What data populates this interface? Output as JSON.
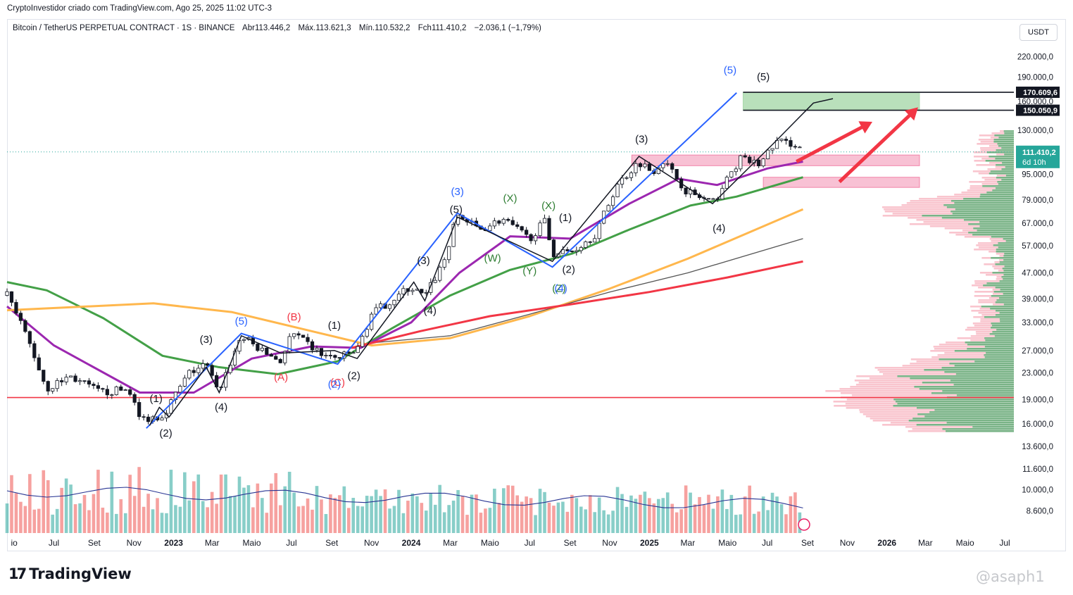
{
  "header": "CryptoInvestidor criado com TradingView.com, Ago 25, 2025 11:02 UTC-3",
  "symbol": {
    "name": "Bitcoin / TetherUS PERPETUAL CONTRACT · 1S · BINANCE",
    "open": "Abr113.446,2",
    "high": "Máx.113.621,3",
    "low": "Mín.110.532,2",
    "close": "Fch111.410,2",
    "change": "−2.036,1 (−1,79%)"
  },
  "currency": "USDT",
  "brand": "TradingView",
  "watermark": "@asaph1",
  "colors": {
    "up": "#26a69a",
    "down": "#ef5350",
    "sma_green": "#43a047",
    "sma_purple": "#9c27b0",
    "sma_orange": "#ffb74d",
    "sma_red": "#f23645",
    "wave_blue": "#2962ff",
    "target_green": "#81c784"
  },
  "chart_data": {
    "type": "candlestick",
    "scale": "log",
    "ylim": [
      7600,
      250000
    ],
    "x_range": [
      "2022-04-20",
      "2026-07-15"
    ],
    "price_ticks": [
      "220.000,0",
      "190.000,0",
      "160.000,0",
      "130.000,0",
      "95.000,0",
      "79.000,0",
      "67.000,0",
      "57.000,0",
      "47.000,0",
      "39.000,0",
      "33.000,0",
      "27.000,0",
      "23.000,0",
      "19.000,0",
      "16.000,0",
      "13.600,0",
      "11.600,0",
      "10.000,0",
      "8.600,0"
    ],
    "price_tick_values": [
      220000,
      190000,
      160000,
      130000,
      95000,
      79000,
      67000,
      57000,
      47000,
      39000,
      33000,
      27000,
      23000,
      19000,
      16000,
      13600,
      11600,
      10000,
      8600
    ],
    "time_ticks": [
      {
        "label": "io",
        "date": "2022-05-01",
        "bold": false
      },
      {
        "label": "Jul",
        "date": "2022-07-01",
        "bold": false
      },
      {
        "label": "Set",
        "date": "2022-09-01",
        "bold": false
      },
      {
        "label": "Nov",
        "date": "2022-11-01",
        "bold": false
      },
      {
        "label": "2023",
        "date": "2023-01-01",
        "bold": true
      },
      {
        "label": "Mar",
        "date": "2023-03-01",
        "bold": false
      },
      {
        "label": "Maio",
        "date": "2023-05-01",
        "bold": false
      },
      {
        "label": "Jul",
        "date": "2023-07-01",
        "bold": false
      },
      {
        "label": "Set",
        "date": "2023-09-01",
        "bold": false
      },
      {
        "label": "Nov",
        "date": "2023-11-01",
        "bold": false
      },
      {
        "label": "2024",
        "date": "2024-01-01",
        "bold": true
      },
      {
        "label": "Mar",
        "date": "2024-03-01",
        "bold": false
      },
      {
        "label": "Maio",
        "date": "2024-05-01",
        "bold": false
      },
      {
        "label": "Jul",
        "date": "2024-07-01",
        "bold": false
      },
      {
        "label": "Set",
        "date": "2024-09-01",
        "bold": false
      },
      {
        "label": "Nov",
        "date": "2024-11-01",
        "bold": false
      },
      {
        "label": "2025",
        "date": "2025-01-01",
        "bold": true
      },
      {
        "label": "Mar",
        "date": "2025-03-01",
        "bold": false
      },
      {
        "label": "Maio",
        "date": "2025-05-01",
        "bold": false
      },
      {
        "label": "Jul",
        "date": "2025-07-01",
        "bold": false
      },
      {
        "label": "Set",
        "date": "2025-09-01",
        "bold": false
      },
      {
        "label": "Nov",
        "date": "2025-11-01",
        "bold": false
      },
      {
        "label": "2026",
        "date": "2026-01-01",
        "bold": true
      },
      {
        "label": "Mar",
        "date": "2026-03-01",
        "bold": false
      },
      {
        "label": "Maio",
        "date": "2026-05-01",
        "bold": false
      },
      {
        "label": "Jul",
        "date": "2026-07-01",
        "bold": false
      }
    ],
    "price_path": [
      [
        "2022-04-20",
        40000
      ],
      [
        "2022-05-20",
        30000
      ],
      [
        "2022-06-20",
        20500
      ],
      [
        "2022-07-25",
        22500
      ],
      [
        "2022-09-10",
        20000
      ],
      [
        "2022-10-25",
        20500
      ],
      [
        "2022-11-10",
        16500
      ],
      [
        "2022-12-15",
        17000
      ],
      [
        "2023-01-25",
        23000
      ],
      [
        "2023-02-20",
        24500
      ],
      [
        "2023-03-10",
        20000
      ],
      [
        "2023-04-15",
        30000
      ],
      [
        "2023-05-15",
        27000
      ],
      [
        "2023-06-15",
        25000
      ],
      [
        "2023-07-01",
        30500
      ],
      [
        "2023-08-20",
        26000
      ],
      [
        "2023-09-10",
        25500
      ],
      [
        "2023-10-10",
        27000
      ],
      [
        "2023-11-01",
        35000
      ],
      [
        "2023-12-31",
        42500
      ],
      [
        "2024-01-22",
        39500
      ],
      [
        "2024-02-20",
        51000
      ],
      [
        "2024-03-12",
        71000
      ],
      [
        "2024-04-15",
        64000
      ],
      [
        "2024-05-20",
        69000
      ],
      [
        "2024-06-30",
        60000
      ],
      [
        "2024-07-25",
        68000
      ],
      [
        "2024-08-05",
        54000
      ],
      [
        "2024-09-05",
        55000
      ],
      [
        "2024-10-10",
        62000
      ],
      [
        "2024-11-12",
        88000
      ],
      [
        "2024-12-16",
        104000
      ],
      [
        "2025-01-05",
        97000
      ],
      [
        "2025-01-22",
        105000
      ],
      [
        "2025-02-28",
        84000
      ],
      [
        "2025-04-08",
        77000
      ],
      [
        "2025-05-20",
        106000
      ],
      [
        "2025-06-20",
        102000
      ],
      [
        "2025-07-14",
        120000
      ],
      [
        "2025-08-14",
        118000
      ],
      [
        "2025-08-25",
        111410.2
      ]
    ],
    "last_price": 111410.2,
    "last_price_label": "111.410,2",
    "countdown": "6d 10h",
    "target_levels": [
      {
        "value": 170609.6,
        "label": "170.609,6"
      },
      {
        "value": 150050.9,
        "label": "150.050,9"
      }
    ],
    "horizontal_line": 19300,
    "moving_averages": [
      {
        "color": "#43a047",
        "points": [
          [
            "2022-04-20",
            44000
          ],
          [
            "2022-06-20",
            41500
          ],
          [
            "2022-09-15",
            34000
          ],
          [
            "2022-12-15",
            26000
          ],
          [
            "2023-03-10",
            24000
          ],
          [
            "2023-06-10",
            22800
          ],
          [
            "2023-09-10",
            25000
          ],
          [
            "2023-12-01",
            31500
          ],
          [
            "2024-03-01",
            40000
          ],
          [
            "2024-06-01",
            48000
          ],
          [
            "2024-09-05",
            54000
          ],
          [
            "2024-12-01",
            64000
          ],
          [
            "2025-03-05",
            76000
          ],
          [
            "2025-05-15",
            81000
          ],
          [
            "2025-08-25",
            93000
          ]
        ]
      },
      {
        "color": "#9c27b0",
        "points": [
          [
            "2022-04-20",
            37000
          ],
          [
            "2022-07-01",
            28000
          ],
          [
            "2022-11-10",
            20000
          ],
          [
            "2023-02-01",
            20000
          ],
          [
            "2023-05-01",
            25500
          ],
          [
            "2023-08-01",
            27800
          ],
          [
            "2023-10-15",
            27500
          ],
          [
            "2024-01-01",
            33000
          ],
          [
            "2024-03-15",
            47000
          ],
          [
            "2024-06-01",
            61000
          ],
          [
            "2024-09-01",
            60000
          ],
          [
            "2024-12-01",
            77000
          ],
          [
            "2025-02-15",
            92000
          ],
          [
            "2025-04-15",
            88000
          ],
          [
            "2025-07-01",
            99000
          ],
          [
            "2025-08-25",
            104000
          ]
        ]
      },
      {
        "color": "#ffb74d",
        "points": [
          [
            "2022-04-20",
            36000
          ],
          [
            "2022-12-01",
            37800
          ],
          [
            "2023-04-01",
            35500
          ],
          [
            "2023-08-01",
            31000
          ],
          [
            "2023-11-01",
            28000
          ],
          [
            "2024-03-01",
            29500
          ],
          [
            "2024-07-01",
            34500
          ],
          [
            "2024-11-01",
            42000
          ],
          [
            "2025-03-01",
            52000
          ],
          [
            "2025-08-25",
            74000
          ]
        ]
      },
      {
        "color": "#555555",
        "points": [
          [
            "2023-11-01",
            28500
          ],
          [
            "2024-03-01",
            30000
          ],
          [
            "2024-07-01",
            35000
          ],
          [
            "2024-11-01",
            41000
          ],
          [
            "2025-03-01",
            47000
          ],
          [
            "2025-08-25",
            60000
          ]
        ]
      },
      {
        "color": "#f23645",
        "points": [
          [
            "2023-10-01",
            27500
          ],
          [
            "2024-01-15",
            31000
          ],
          [
            "2024-05-01",
            34500
          ],
          [
            "2024-09-01",
            37500
          ],
          [
            "2025-01-01",
            41000
          ],
          [
            "2025-05-01",
            45500
          ],
          [
            "2025-08-25",
            51000
          ]
        ]
      }
    ],
    "wave_labels": [
      {
        "text": "(1)",
        "date": "2022-12-05",
        "price": 18700,
        "color": "#131722"
      },
      {
        "text": "(2)",
        "date": "2022-12-20",
        "price": 14600,
        "color": "#131722"
      },
      {
        "text": "(3)",
        "date": "2023-02-20",
        "price": 28500,
        "color": "#131722"
      },
      {
        "text": "(4)",
        "date": "2023-03-15",
        "price": 17600,
        "color": "#131722"
      },
      {
        "text": "(5)",
        "date": "2023-04-15",
        "price": 32500,
        "color": "#2962ff"
      },
      {
        "text": "(B)",
        "date": "2023-07-05",
        "price": 33500,
        "color": "#f23645"
      },
      {
        "text": "(A)",
        "date": "2023-06-15",
        "price": 21800,
        "color": "#f23645"
      },
      {
        "text": "(C)",
        "date": "2023-09-10",
        "price": 21000,
        "color": "#f23645"
      },
      {
        "text": "(2)",
        "date": "2023-09-05",
        "price": 20700,
        "color": "#2962ff"
      },
      {
        "text": "(1)",
        "date": "2023-09-05",
        "price": 31500,
        "color": "#131722"
      },
      {
        "text": "(2)",
        "date": "2023-10-05",
        "price": 22000,
        "color": "#131722"
      },
      {
        "text": "(3)",
        "date": "2024-01-20",
        "price": 50000,
        "color": "#131722"
      },
      {
        "text": "(4)",
        "date": "2024-01-30",
        "price": 35000,
        "color": "#131722"
      },
      {
        "text": "(5)",
        "date": "2024-03-10",
        "price": 72000,
        "color": "#131722"
      },
      {
        "text": "(3)",
        "date": "2024-03-12",
        "price": 82000,
        "color": "#2962ff"
      },
      {
        "text": "(W)",
        "date": "2024-05-05",
        "price": 51000,
        "color": "#2e7d32"
      },
      {
        "text": "(X)",
        "date": "2024-06-01",
        "price": 78000,
        "color": "#2e7d32"
      },
      {
        "text": "(Y)",
        "date": "2024-07-01",
        "price": 46500,
        "color": "#2e7d32"
      },
      {
        "text": "(X)",
        "date": "2024-07-30",
        "price": 74000,
        "color": "#2e7d32"
      },
      {
        "text": "(1)",
        "date": "2024-08-25",
        "price": 68000,
        "color": "#131722"
      },
      {
        "text": "(Z)",
        "date": "2024-08-15",
        "price": 41000,
        "color": "#2e7d32"
      },
      {
        "text": "(4)",
        "date": "2024-08-18",
        "price": 41000,
        "color": "#2962ff"
      },
      {
        "text": "(2)",
        "date": "2024-08-30",
        "price": 47000,
        "color": "#131722"
      },
      {
        "text": "(3)",
        "date": "2024-12-20",
        "price": 119000,
        "color": "#131722"
      },
      {
        "text": "(4)",
        "date": "2025-04-18",
        "price": 63000,
        "color": "#131722"
      },
      {
        "text": "(5)",
        "date": "2025-05-05",
        "price": 195000,
        "color": "#2962ff"
      },
      {
        "text": "(5)",
        "date": "2025-06-25",
        "price": 186000,
        "color": "#131722"
      }
    ]
  }
}
